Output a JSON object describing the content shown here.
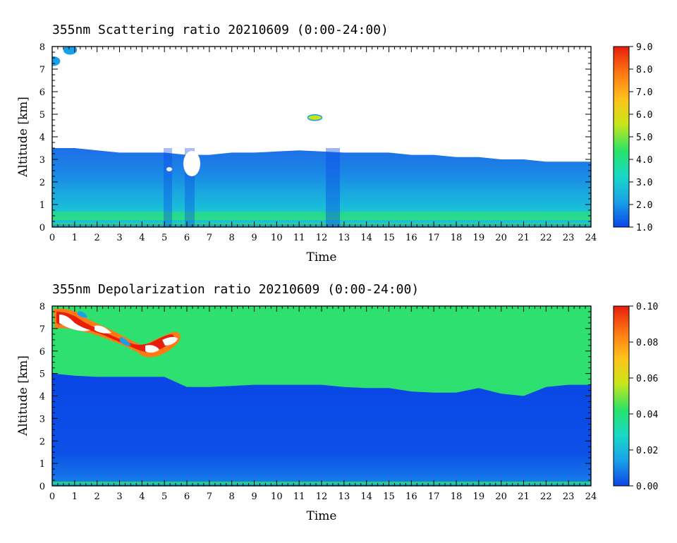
{
  "chart_data": [
    {
      "type": "heatmap",
      "title": "355nm Scattering ratio  20210609 (0:00-24:00)",
      "xlabel": "Time",
      "ylabel": "Altitude [km]",
      "xlim": [
        0,
        24
      ],
      "ylim": [
        0,
        8
      ],
      "x_ticks": [
        "0",
        "1",
        "2",
        "3",
        "4",
        "5",
        "6",
        "7",
        "8",
        "9",
        "10",
        "11",
        "12",
        "13",
        "14",
        "15",
        "16",
        "17",
        "18",
        "19",
        "20",
        "21",
        "22",
        "23",
        "24"
      ],
      "y_ticks": [
        "0",
        "1",
        "2",
        "3",
        "4",
        "5",
        "6",
        "7",
        "8"
      ],
      "colorbar": {
        "range": [
          1.0,
          9.0
        ],
        "ticks": [
          "1.0",
          "2.0",
          "3.0",
          "4.0",
          "5.0",
          "6.0",
          "7.0",
          "8.0",
          "9.0"
        ],
        "colors": [
          "#0a46e6",
          "#1aa0e8",
          "#19d8c8",
          "#27e36a",
          "#c8e61a",
          "#ffc21a",
          "#ff7a14",
          "#e61e0a"
        ]
      },
      "layers": {
        "boundary_layer_top_km": [
          3.5,
          3.5,
          3.4,
          3.3,
          3.3,
          3.3,
          3.2,
          3.2,
          3.3,
          3.3,
          3.35,
          3.4,
          3.35,
          3.3,
          3.3,
          3.3,
          3.2,
          3.2,
          3.1,
          3.1,
          3.0,
          3.0,
          2.9,
          2.9,
          2.9
        ],
        "surface_layer_value": 4.0,
        "mid_layer_value": 2.0,
        "upper_layer_value": 1.5
      },
      "features": [
        {
          "label": "cloud",
          "time_h": 11.7,
          "altitude_km": 4.85,
          "value": 6.0
        },
        {
          "label": "cloud",
          "time_h": 0.8,
          "altitude_km": 7.85,
          "value": 2.2
        },
        {
          "label": "cloud",
          "time_h": 0.05,
          "altitude_km": 7.35,
          "value": 2.0
        }
      ]
    },
    {
      "type": "heatmap",
      "title": "355nm Depolarization ratio  20210609 (0:00-24:00)",
      "xlabel": "Time",
      "ylabel": "Altitude [km]",
      "xlim": [
        0,
        24
      ],
      "ylim": [
        0,
        8
      ],
      "x_ticks": [
        "0",
        "1",
        "2",
        "3",
        "4",
        "5",
        "6",
        "7",
        "8",
        "9",
        "10",
        "11",
        "12",
        "13",
        "14",
        "15",
        "16",
        "17",
        "18",
        "19",
        "20",
        "21",
        "22",
        "23",
        "24"
      ],
      "y_ticks": [
        "0",
        "1",
        "2",
        "3",
        "4",
        "5",
        "6",
        "7",
        "8"
      ],
      "colorbar": {
        "range": [
          0.0,
          0.1
        ],
        "ticks": [
          "0.00",
          "0.02",
          "0.04",
          "0.06",
          "0.08",
          "0.10"
        ],
        "colors": [
          "#0a46e6",
          "#1aa0e8",
          "#19d8c8",
          "#27e36a",
          "#c8e61a",
          "#ffc21a",
          "#ff7a14",
          "#e61e0a"
        ]
      },
      "layers": {
        "aerosol_top_km": [
          5.0,
          4.9,
          4.85,
          4.85,
          4.85,
          4.85,
          4.4,
          4.4,
          4.45,
          4.5,
          4.5,
          4.5,
          4.5,
          4.4,
          4.35,
          4.35,
          4.2,
          4.15,
          4.15,
          4.35,
          4.1,
          4.0,
          4.4,
          4.5,
          4.5
        ],
        "free_troposphere_value": 0.04,
        "aerosol_layer_value": 0.005
      },
      "features": [
        {
          "label": "cirrus",
          "time_h": 2.5,
          "altitude_km": 7.0,
          "value": 0.09
        },
        {
          "label": "cirrus",
          "time_h": 4.8,
          "altitude_km": 6.2,
          "value": 0.09
        }
      ]
    }
  ]
}
